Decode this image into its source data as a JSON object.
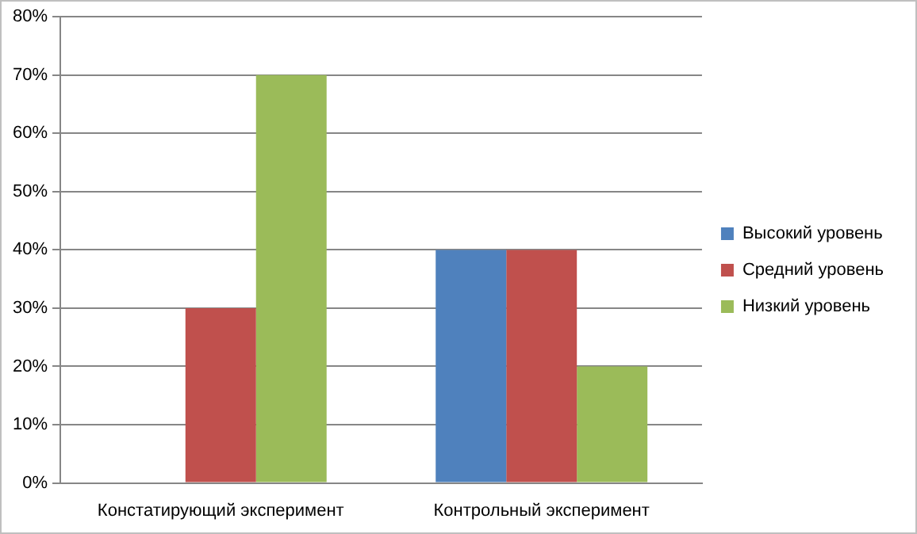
{
  "chart_data": {
    "type": "bar",
    "categories": [
      "Констатирующий эксперимент",
      "Контрольный эксперимент"
    ],
    "series": [
      {
        "name": "Высокий уровень",
        "color": "#4f81bd",
        "values": [
          0,
          40
        ]
      },
      {
        "name": "Средний уровень",
        "color": "#c0504d",
        "values": [
          30,
          40
        ]
      },
      {
        "name": "Низкий уровень",
        "color": "#9bbb59",
        "values": [
          70,
          20
        ]
      }
    ],
    "ylim": [
      0,
      80
    ],
    "yticks": [
      {
        "value": 0,
        "label": "0%"
      },
      {
        "value": 10,
        "label": "10%"
      },
      {
        "value": 20,
        "label": "20%"
      },
      {
        "value": 30,
        "label": "30%"
      },
      {
        "value": 40,
        "label": "40%"
      },
      {
        "value": 50,
        "label": "50%"
      },
      {
        "value": 60,
        "label": "60%"
      },
      {
        "value": 70,
        "label": "70%"
      },
      {
        "value": 80,
        "label": "80%"
      }
    ],
    "grid": "y",
    "legend": "right"
  }
}
